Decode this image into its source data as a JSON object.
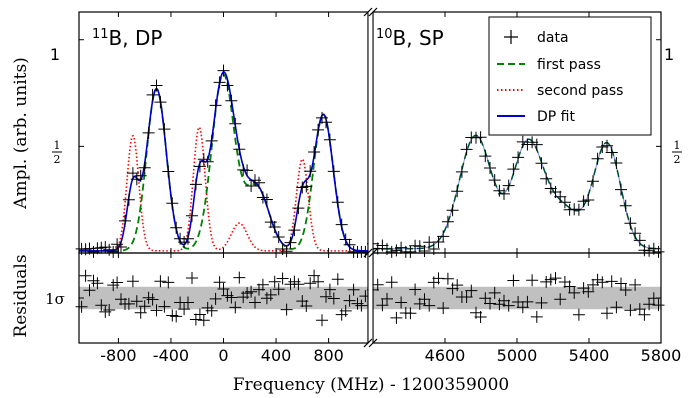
{
  "chart_data": {
    "type": "line",
    "xlabel": "Frequency (MHz) - 1200359000",
    "ylabel_top": "Ampl. (arb. units)",
    "ylabel_bottom": "Residuals",
    "yticks_top": [
      {
        "value": 1,
        "num": "1",
        "den": ""
      },
      {
        "value": 0.5,
        "num": "1",
        "den": "2"
      }
    ],
    "residual_band_label": "1σ",
    "panels": [
      {
        "label_sup": "11",
        "label_rest": "B, DP",
        "xlim": [
          -1100,
          1100
        ],
        "xticks": [
          -800,
          -400,
          0,
          400,
          800
        ],
        "xticklabels": [
          "-800",
          "-400",
          "0",
          "400",
          "800"
        ]
      },
      {
        "label_sup": "10",
        "label_rest": "B, SP",
        "xlim": [
          4200,
          5800
        ],
        "xticks": [
          4600,
          5000,
          5400,
          5800
        ],
        "xticklabels": [
          "4600",
          "5000",
          "5400",
          "5800"
        ]
      }
    ],
    "ylim_top": [
      0,
      1.13
    ],
    "ylim_residual": [
      -1,
      1
    ],
    "residual_band": [
      -0.25,
      0.25
    ],
    "legend": {
      "placement": "top-right",
      "entries": [
        {
          "name": "data",
          "style": "marker",
          "color": "#000000"
        },
        {
          "name": "first pass",
          "style": "dashed",
          "color": "#008000"
        },
        {
          "name": "second pass",
          "style": "dotted",
          "color": "#ff0000"
        },
        {
          "name": "DP fit",
          "style": "solid",
          "color": "#0000cc"
        }
      ]
    },
    "series_models": {
      "dp_first_pass": [
        {
          "center": -510,
          "height": 0.76,
          "width": 75
        },
        {
          "center": -3,
          "height": 0.82,
          "width": 85
        },
        {
          "center": 250,
          "height": 0.3,
          "width": 95
        },
        {
          "center": 760,
          "height": 0.64,
          "width": 75
        }
      ],
      "dp_second_pass": [
        {
          "center": -690,
          "height": 0.54,
          "width": 45
        },
        {
          "center": -185,
          "height": 0.58,
          "width": 45
        },
        {
          "center": 120,
          "height": 0.13,
          "width": 60
        },
        {
          "center": 600,
          "height": 0.43,
          "width": 45
        }
      ],
      "sp_fit": [
        {
          "center": 4770,
          "height": 0.53,
          "width": 90
        },
        {
          "center": 5060,
          "height": 0.49,
          "width": 85
        },
        {
          "center": 5260,
          "height": 0.18,
          "width": 95
        },
        {
          "center": 5500,
          "height": 0.49,
          "width": 75
        }
      ],
      "dp_baseline": 0.01,
      "sp_baseline": 0.02
    },
    "data_points": {
      "dp_x_range": [
        -1080,
        1080
      ],
      "dp_x_step": 30,
      "sp_x_range": [
        4200,
        5790
      ],
      "sp_x_step": 26
    },
    "colors": {
      "dp_fit": "#0000cc",
      "first_pass": "#008000",
      "second_pass": "#ff0000",
      "data": "#000000",
      "band": "#c0c0c0"
    }
  }
}
